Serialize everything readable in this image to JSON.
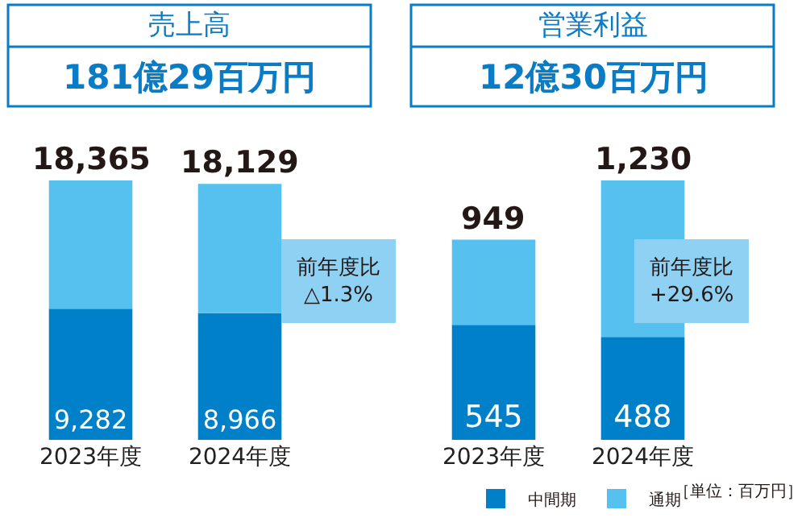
{
  "chart_data": [
    {
      "type": "bar",
      "title": "売上高",
      "subtitle": "181億29百万円",
      "categories": [
        "2023年度",
        "2024年度"
      ],
      "stacked": true,
      "legend": false,
      "series": [
        {
          "color": "#0080c8",
          "values": [
            9282,
            8966
          ],
          "value_labels": [
            "9,282",
            "8,966"
          ]
        },
        {
          "color": "#56c0ee",
          "values": [
            9083,
            9163
          ]
        }
      ],
      "totals": [
        "18,365",
        "18,129"
      ],
      "annotations": [
        "前年度比\n△1.3%"
      ]
    },
    {
      "type": "bar",
      "title": "営業利益",
      "subtitle": "12億30百万円",
      "categories": [
        "2023年度",
        "2024年度"
      ],
      "stacked": true,
      "legend": "bottom right",
      "series": [
        {
          "name": "中間期",
          "color": "#0080c8",
          "values": [
            545,
            488
          ],
          "value_labels": [
            "545",
            "488"
          ]
        },
        {
          "name": "通期",
          "color": "#56c0ee",
          "values": [
            404,
            742
          ]
        }
      ],
      "totals": [
        "949",
        "1,230"
      ],
      "annotations": [
        "前年度比\n+29.6%",
        "［単位：百万円］"
      ]
    }
  ]
}
